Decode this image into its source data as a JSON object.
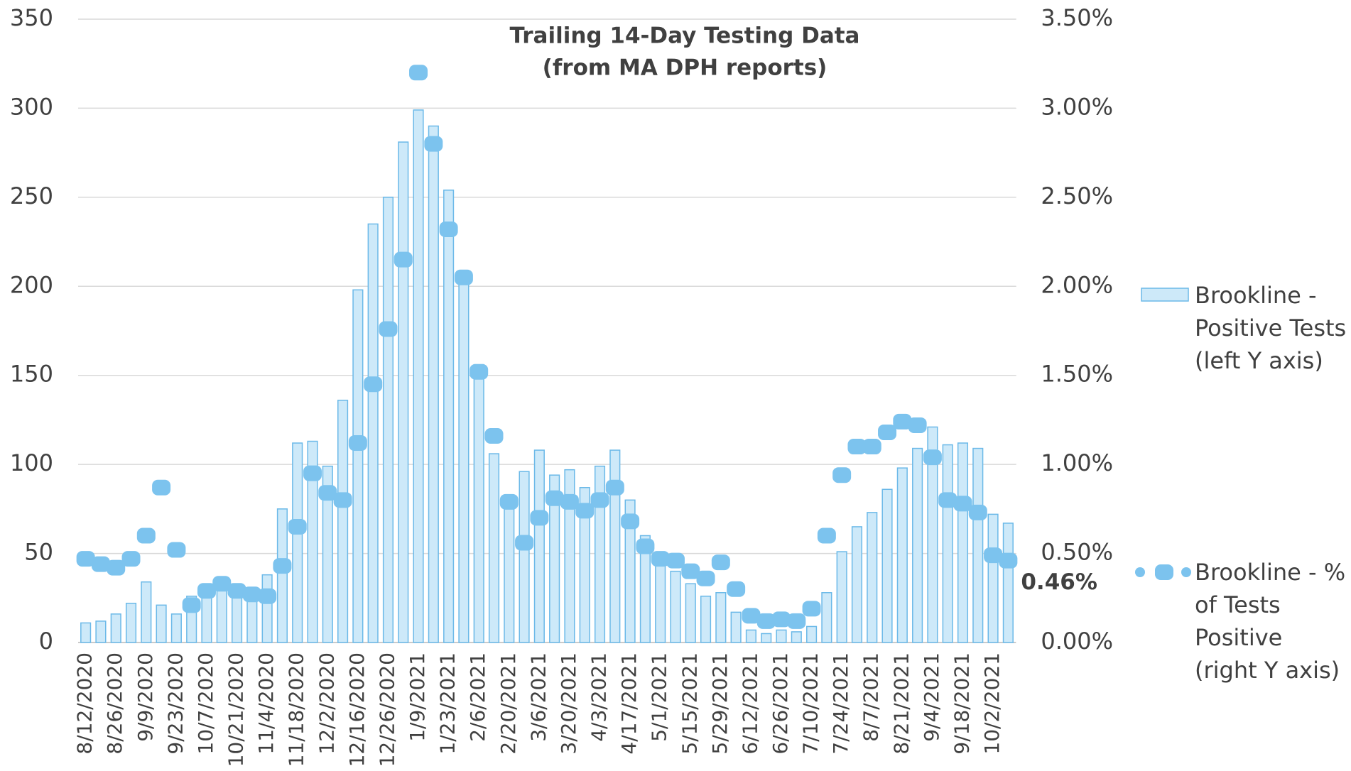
{
  "chart_data": {
    "type": "bar",
    "title": "Trailing 14-Day Testing Data",
    "subtitle": "(from MA DPH reports)",
    "categories": [
      "8/12/2020",
      null,
      "8/26/2020",
      null,
      "9/9/2020",
      null,
      "9/23/2020",
      null,
      "10/7/2020",
      null,
      "10/21/2020",
      null,
      "11/4/2020",
      null,
      "11/18/2020",
      null,
      "12/2/2020",
      null,
      "12/16/2020",
      null,
      "12/26/2020",
      null,
      "1/9/2021",
      null,
      "1/23/2021",
      null,
      "2/6/2021",
      null,
      "2/20/2021",
      null,
      "3/6/2021",
      null,
      "3/20/2021",
      null,
      "4/3/2021",
      null,
      "4/17/2021",
      null,
      "5/1/2021",
      null,
      "5/15/2021",
      null,
      "5/29/2021",
      null,
      "6/12/2021",
      null,
      "6/26/2021",
      null,
      "7/10/2021",
      null,
      "7/24/2021",
      null,
      "8/7/2021",
      null,
      "8/21/2021",
      null,
      "9/4/2021",
      null,
      "9/18/2021",
      null,
      "10/2/2021",
      null
    ],
    "series": [
      {
        "name": "Brookline - Positive Tests (left Y axis)",
        "type": "bar",
        "color": "#cde9f9",
        "stroke": "#6bb9e8",
        "values": [
          11,
          12,
          16,
          22,
          34,
          21,
          16,
          26,
          29,
          30,
          26,
          27,
          38,
          75,
          112,
          113,
          99,
          136,
          198,
          235,
          250,
          281,
          299,
          290,
          254,
          206,
          156,
          106,
          75,
          96,
          108,
          94,
          97,
          87,
          99,
          108,
          80,
          60,
          47,
          40,
          33,
          26,
          28,
          17,
          7,
          5,
          7,
          6,
          9,
          28,
          51,
          65,
          73,
          86,
          98,
          109,
          121,
          111,
          112,
          109,
          72,
          67
        ]
      },
      {
        "name": "Brookline - % of Tests Positive (right Y axis)",
        "type": "marker",
        "axis": "y2",
        "color": "#7cc3ee",
        "values": [
          0.47,
          0.44,
          0.42,
          0.47,
          0.6,
          0.87,
          0.52,
          0.21,
          0.29,
          0.33,
          0.29,
          0.27,
          0.26,
          0.43,
          0.65,
          0.95,
          0.84,
          0.8,
          1.12,
          1.45,
          1.76,
          2.15,
          3.2,
          2.8,
          2.32,
          2.05,
          1.52,
          1.16,
          0.79,
          0.56,
          0.7,
          0.81,
          0.79,
          0.74,
          0.8,
          0.87,
          0.68,
          0.54,
          0.47,
          0.46,
          0.4,
          0.36,
          0.45,
          0.3,
          0.15,
          0.12,
          0.13,
          0.12,
          0.19,
          0.6,
          0.94,
          1.1,
          1.1,
          1.18,
          1.24,
          1.22,
          1.04,
          0.8,
          0.78,
          0.73,
          0.49,
          0.46
        ],
        "value_labels": [
          null,
          null,
          null,
          null,
          null,
          null,
          null,
          null,
          null,
          null,
          null,
          null,
          null,
          null,
          null,
          null,
          null,
          null,
          null,
          null,
          null,
          null,
          null,
          null,
          null,
          null,
          null,
          null,
          null,
          null,
          null,
          null,
          null,
          null,
          null,
          null,
          null,
          null,
          null,
          null,
          null,
          null,
          null,
          null,
          null,
          null,
          null,
          null,
          null,
          null,
          null,
          null,
          null,
          null,
          null,
          null,
          null,
          null,
          null,
          null,
          null,
          "0.46%"
        ]
      }
    ],
    "ylim": [
      0,
      350
    ],
    "yticks": [
      0,
      50,
      100,
      150,
      200,
      250,
      300,
      350
    ],
    "y2lim": [
      0,
      3.5
    ],
    "y2ticks": [
      {
        "value": 0,
        "label": "0.00%"
      },
      {
        "value": 0.5,
        "label": "0.50%"
      },
      {
        "value": 1,
        "label": "1.00%"
      },
      {
        "value": 1.5,
        "label": "1.50%"
      },
      {
        "value": 2,
        "label": "2.00%"
      },
      {
        "value": 2.5,
        "label": "2.50%"
      },
      {
        "value": 3,
        "label": "3.00%"
      },
      {
        "value": 3.5,
        "label": "3.50%"
      }
    ],
    "grid": true,
    "legend": "right"
  }
}
